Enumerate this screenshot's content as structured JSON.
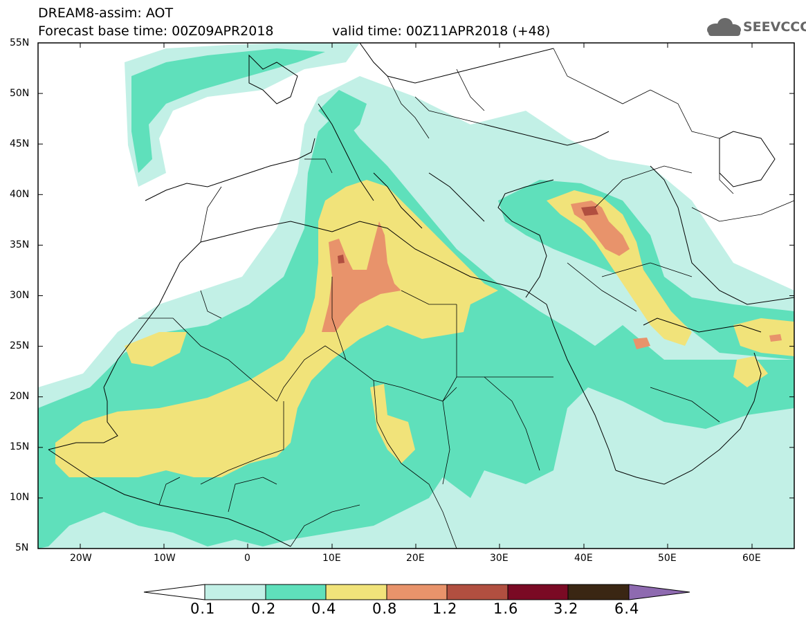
{
  "header": {
    "title": "DREAM8-assim: AOT",
    "base_time": "Forecast base time: 00Z09APR2018",
    "valid_time": "valid time: 00Z11APR2018 (+48)"
  },
  "logo": {
    "text": "SEEVCCC",
    "icon": "cloud-icon"
  },
  "map": {
    "lon_range": [
      -25,
      65
    ],
    "lat_range": [
      5,
      55
    ],
    "lat_ticks": [
      "55N",
      "50N",
      "45N",
      "40N",
      "35N",
      "30N",
      "25N",
      "20N",
      "15N",
      "10N",
      "5N"
    ],
    "lon_ticks": [
      "20W",
      "10W",
      "0",
      "10E",
      "20E",
      "30E",
      "40E",
      "50E",
      "60E"
    ]
  },
  "colorbar": {
    "labels": [
      "0.1",
      "0.2",
      "0.4",
      "0.8",
      "1.2",
      "1.6",
      "3.2",
      "6.4"
    ],
    "colors": [
      "#ffffff",
      "#c2f0e6",
      "#5fe0bb",
      "#f1e37a",
      "#e8936b",
      "#b14f40",
      "#7a0a24",
      "#3a2613",
      "#8e6ab0"
    ]
  }
}
